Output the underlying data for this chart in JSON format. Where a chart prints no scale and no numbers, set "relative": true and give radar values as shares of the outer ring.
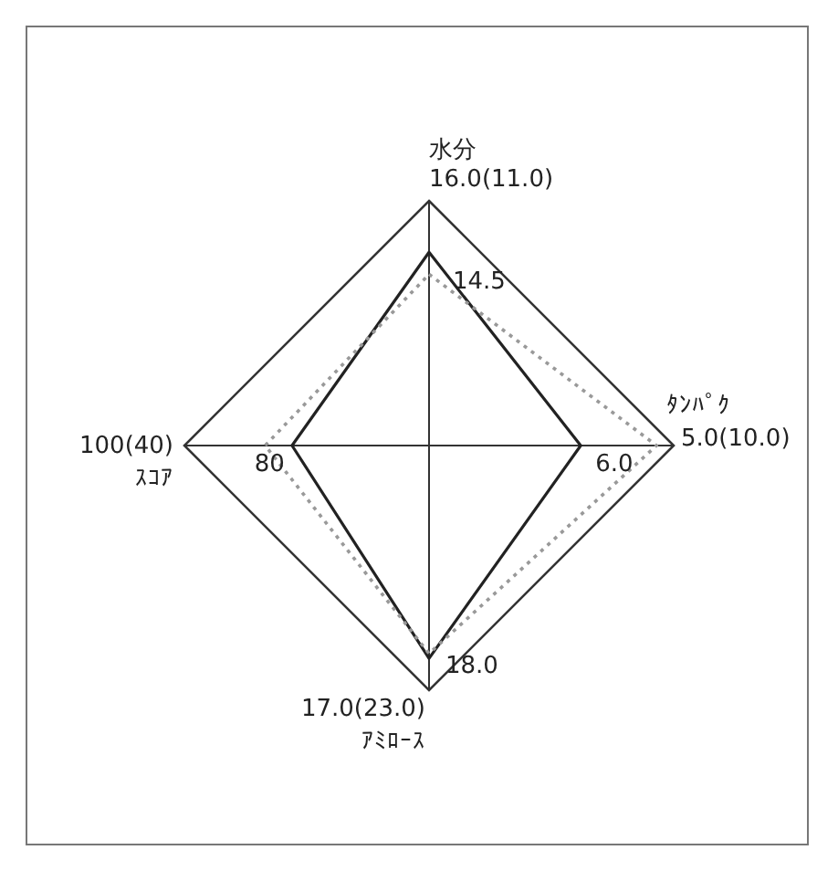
{
  "chart_data": {
    "type": "radar",
    "relative": true,
    "grid": true,
    "categories": [
      "水分",
      "ﾀﾝﾊﾟｸ",
      "ｱﾐﾛｰｽ",
      "ｽｺｱ"
    ],
    "annotations": [
      "16.0(11.0)",
      "5.0(10.0)",
      "17.0(23.0)",
      "100(40)",
      "14.5",
      "6.0",
      "18.0",
      "80"
    ],
    "series": [
      {
        "color": "#222222",
        "line_style": "solid",
        "values": [
          0.79,
          0.62,
          0.87,
          0.56
        ]
      },
      {
        "color": "#999999",
        "line_style": "dotted",
        "values": [
          0.7,
          0.93,
          0.85,
          0.67
        ]
      }
    ]
  }
}
